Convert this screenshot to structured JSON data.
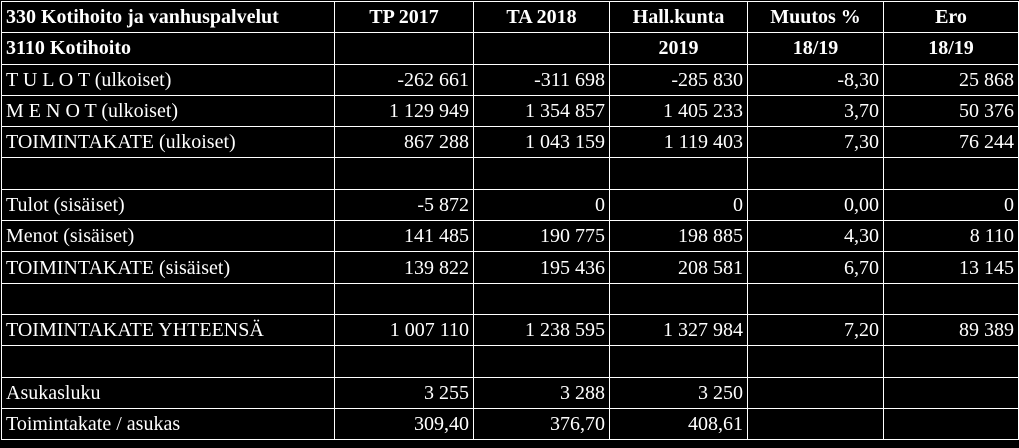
{
  "header": {
    "row1": [
      "330 Kotihoito ja vanhuspalvelut",
      "TP 2017",
      "TA 2018",
      "Hall.kunta",
      "Muutos %",
      "Ero"
    ],
    "row2": [
      "3110 Kotihoito",
      "",
      "",
      "2019",
      "18/19",
      "18/19"
    ]
  },
  "rows": [
    {
      "label": "T U L O T (ulkoiset)",
      "values": [
        "-262 661",
        "-311 698",
        "-285 830",
        "-8,30",
        "25 868"
      ]
    },
    {
      "label": "M E N O T (ulkoiset)",
      "values": [
        "1 129 949",
        "1 354 857",
        "1 405 233",
        "3,70",
        "50 376"
      ]
    },
    {
      "label": "TOIMINTAKATE     (ulkoiset)",
      "values": [
        "867 288",
        "1 043 159",
        "1 119 403",
        "7,30",
        "76 244"
      ]
    },
    {
      "label": "",
      "values": [
        "",
        "",
        "",
        "",
        ""
      ]
    },
    {
      "label": "Tulot (sisäiset)",
      "values": [
        "-5 872",
        "0",
        "0",
        "0,00",
        "0"
      ]
    },
    {
      "label": "Menot (sisäiset)",
      "values": [
        "141 485",
        "190 775",
        "198 885",
        "4,30",
        "8 110"
      ]
    },
    {
      "label": "TOIMINTAKATE     (sisäiset)",
      "values": [
        "139 822",
        "195 436",
        "208 581",
        "6,70",
        "13 145"
      ]
    },
    {
      "label": "",
      "values": [
        "",
        "",
        "",
        "",
        ""
      ]
    },
    {
      "label": "TOIMINTAKATE YHTEENSÄ",
      "values": [
        "1 007 110",
        "1 238 595",
        "1 327 984",
        "7,20",
        "89 389"
      ]
    },
    {
      "label": "",
      "values": [
        "",
        "",
        "",
        "",
        ""
      ]
    },
    {
      "label": "Asukasluku",
      "values": [
        "3 255",
        "3 288",
        "3 250",
        "",
        ""
      ]
    },
    {
      "label": "Toimintakate / asukas",
      "values": [
        "309,40",
        "376,70",
        "408,61",
        "",
        ""
      ]
    }
  ]
}
